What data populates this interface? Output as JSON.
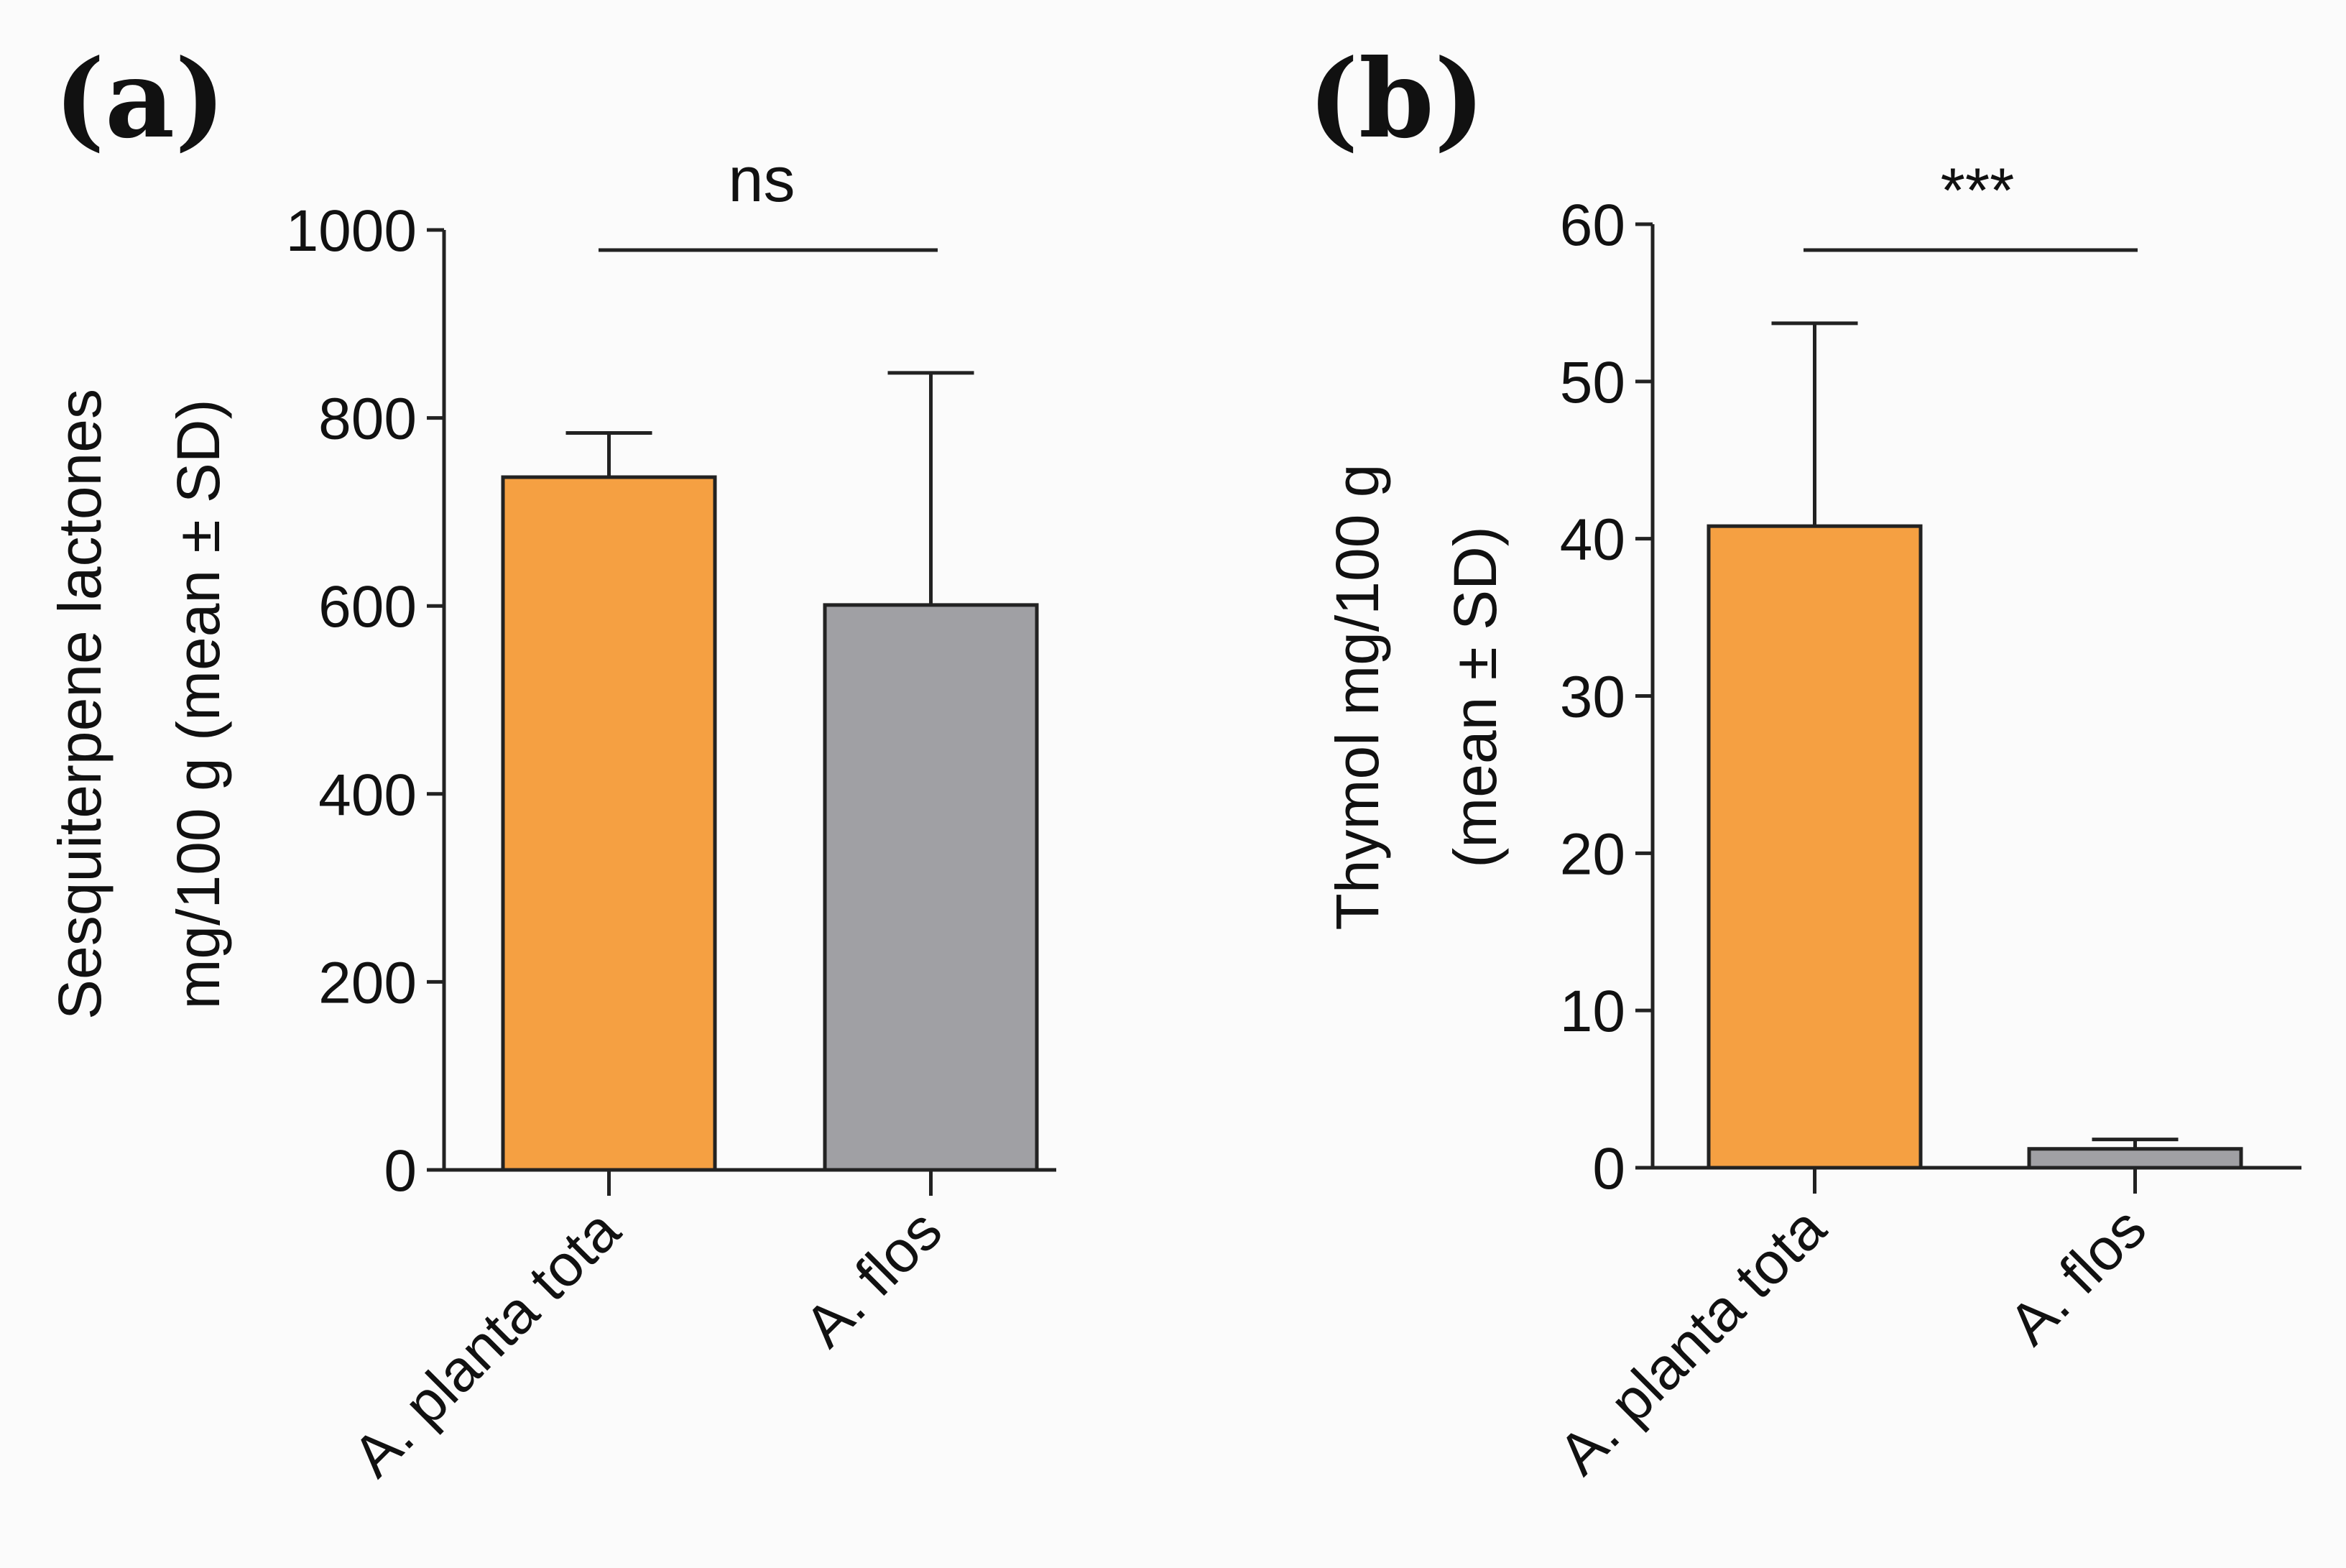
{
  "chart_data": [
    {
      "panel": "(a)",
      "type": "bar",
      "title": "",
      "categories": [
        "A. planta tota",
        "A. flos"
      ],
      "values": [
        737,
        601
      ],
      "errors": [
        47,
        247
      ],
      "colors": [
        "#f5a042",
        "#a0a0a4"
      ],
      "ylabel_lines": [
        "Sesquiterpene lactones",
        "mg/100 g (mean ± SD)"
      ],
      "ylim": [
        0,
        1000
      ],
      "yticks": [
        0,
        200,
        400,
        600,
        800,
        1000
      ],
      "ytick_labels": [
        "0",
        "200",
        "400",
        "600",
        "800",
        "1000"
      ],
      "significance": "ns"
    },
    {
      "panel": "(b)",
      "type": "bar",
      "title": "",
      "categories": [
        "A. planta tota",
        "A. flos"
      ],
      "values": [
        40.8,
        1.2
      ],
      "errors": [
        12.9,
        0.6
      ],
      "colors": [
        "#f5a042",
        "#a0a0a4"
      ],
      "ylabel_lines": [
        "Thymol mg/100 g",
        "(mean ± SD)"
      ],
      "ylim": [
        0,
        60
      ],
      "yticks": [
        0,
        10,
        20,
        30,
        40,
        50,
        60
      ],
      "ytick_labels": [
        "0",
        "10",
        "20",
        "30",
        "40",
        "50",
        "60"
      ],
      "significance": "***"
    }
  ]
}
